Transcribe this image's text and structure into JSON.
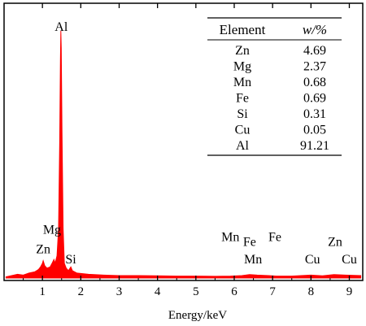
{
  "chart_data": {
    "type": "line",
    "title": "",
    "xlabel": "Energy/keV",
    "ylabel": "",
    "xlim": [
      0,
      9.35
    ],
    "ylim": [
      0,
      1
    ],
    "x_ticks": [
      "1",
      "2",
      "3",
      "4",
      "5",
      "6",
      "7",
      "8",
      "9"
    ],
    "series_color": "#ff0000",
    "spectrum": [
      [
        0.05,
        0.005
      ],
      [
        0.2,
        0.01
      ],
      [
        0.35,
        0.015
      ],
      [
        0.5,
        0.012
      ],
      [
        0.65,
        0.02
      ],
      [
        0.8,
        0.025
      ],
      [
        0.9,
        0.035
      ],
      [
        0.95,
        0.045
      ],
      [
        1.0,
        0.06
      ],
      [
        1.02,
        0.07
      ],
      [
        1.06,
        0.05
      ],
      [
        1.12,
        0.04
      ],
      [
        1.2,
        0.045
      ],
      [
        1.25,
        0.06
      ],
      [
        1.3,
        0.075
      ],
      [
        1.33,
        0.06
      ],
      [
        1.38,
        0.09
      ],
      [
        1.42,
        0.2
      ],
      [
        1.45,
        0.55
      ],
      [
        1.47,
        0.88
      ],
      [
        1.48,
        1.0
      ],
      [
        1.49,
        0.93
      ],
      [
        1.51,
        0.6
      ],
      [
        1.54,
        0.2
      ],
      [
        1.57,
        0.06
      ],
      [
        1.62,
        0.04
      ],
      [
        1.68,
        0.03
      ],
      [
        1.74,
        0.045
      ],
      [
        1.78,
        0.03
      ],
      [
        1.9,
        0.02
      ],
      [
        2.2,
        0.015
      ],
      [
        2.6,
        0.012
      ],
      [
        3.0,
        0.01
      ],
      [
        3.5,
        0.01
      ],
      [
        4.0,
        0.009
      ],
      [
        4.5,
        0.008
      ],
      [
        5.0,
        0.008
      ],
      [
        5.5,
        0.007
      ],
      [
        5.9,
        0.008
      ],
      [
        6.2,
        0.01
      ],
      [
        6.4,
        0.014
      ],
      [
        6.6,
        0.012
      ],
      [
        6.9,
        0.01
      ],
      [
        7.1,
        0.008
      ],
      [
        7.5,
        0.008
      ],
      [
        8.0,
        0.012
      ],
      [
        8.3,
        0.009
      ],
      [
        8.6,
        0.014
      ],
      [
        8.9,
        0.012
      ],
      [
        9.3,
        0.01
      ]
    ],
    "peak_labels": [
      {
        "text": "Al",
        "x": 1.49,
        "level": 0.98
      },
      {
        "text": "Mg",
        "x": 1.25,
        "level": 0.16
      },
      {
        "text": "Zn",
        "x": 1.02,
        "level": 0.08
      },
      {
        "text": "Si",
        "x": 1.74,
        "level": 0.04
      },
      {
        "text": "Mn",
        "x": 5.9,
        "level": 0.13
      },
      {
        "text": "Fe",
        "x": 6.4,
        "level": 0.11
      },
      {
        "text": "Fe",
        "x": 7.06,
        "level": 0.13
      },
      {
        "text": "Mn",
        "x": 6.49,
        "level": 0.04
      },
      {
        "text": "Cu",
        "x": 8.04,
        "level": 0.04
      },
      {
        "text": "Zn",
        "x": 8.63,
        "level": 0.11
      },
      {
        "text": "Cu",
        "x": 9.0,
        "level": 0.04
      }
    ],
    "table": {
      "headers": [
        "Element",
        "w/%"
      ],
      "rows": [
        [
          "Zn",
          "4.69"
        ],
        [
          "Mg",
          "2.37"
        ],
        [
          "Mn",
          "0.68"
        ],
        [
          "Fe",
          "0.69"
        ],
        [
          "Si",
          "0.31"
        ],
        [
          "Cu",
          "0.05"
        ],
        [
          "Al",
          "91.21"
        ]
      ]
    }
  }
}
